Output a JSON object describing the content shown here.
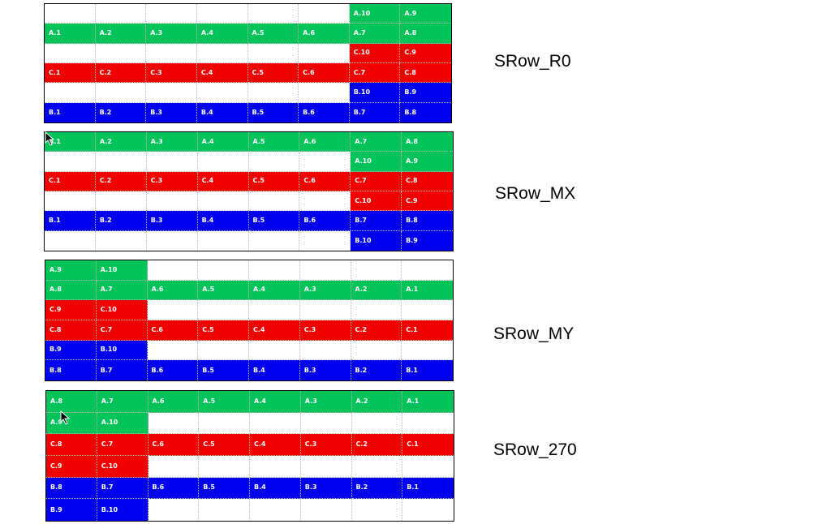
{
  "colors": {
    "A": "#00c35a",
    "C": "#f00000",
    "B": "#0000ee"
  },
  "panels": [
    {
      "label": "SRow_R0",
      "rows": [
        [
          "",
          "",
          "",
          "",
          "",
          "",
          "A.10",
          "A.9"
        ],
        [
          "A.1",
          "A.2",
          "A.3",
          "A.4",
          "A.5",
          "A.6",
          "A.7",
          "A.8"
        ],
        [
          "",
          "",
          "",
          "",
          "",
          "",
          "C.10",
          "C.9"
        ],
        [
          "C.1",
          "C.2",
          "C.3",
          "C.4",
          "C.5",
          "C.6",
          "C.7",
          "C.8"
        ],
        [
          "",
          "",
          "",
          "",
          "",
          "",
          "B.10",
          "B.9"
        ],
        [
          "B.1",
          "B.2",
          "B.3",
          "B.4",
          "B.5",
          "B.6",
          "B.7",
          "B.8"
        ]
      ]
    },
    {
      "label": "SRow_MX",
      "rows": [
        [
          "A.1",
          "A.2",
          "A.3",
          "A.4",
          "A.5",
          "A.6",
          "A.7",
          "A.8"
        ],
        [
          "",
          "",
          "",
          "",
          "",
          "",
          "A.10",
          "A.9"
        ],
        [
          "C.1",
          "C.2",
          "C.3",
          "C.4",
          "C.5",
          "C.6",
          "C.7",
          "C.8"
        ],
        [
          "",
          "",
          "",
          "",
          "",
          "",
          "C.10",
          "C.9"
        ],
        [
          "B.1",
          "B.2",
          "B.3",
          "B.4",
          "B.5",
          "B.6",
          "B.7",
          "B.8"
        ],
        [
          "",
          "",
          "",
          "",
          "",
          "",
          "B.10",
          "B.9"
        ]
      ]
    },
    {
      "label": "SRow_MY",
      "rows": [
        [
          "A.9",
          "A.10",
          "",
          "",
          "",
          "",
          "",
          ""
        ],
        [
          "A.8",
          "A.7",
          "A.6",
          "A.5",
          "A.4",
          "A.3",
          "A.2",
          "A.1"
        ],
        [
          "C.9",
          "C.10",
          "",
          "",
          "",
          "",
          "",
          ""
        ],
        [
          "C.8",
          "C.7",
          "C.6",
          "C.5",
          "C.4",
          "C.3",
          "C.2",
          "C.1"
        ],
        [
          "B.9",
          "B.10",
          "",
          "",
          "",
          "",
          "",
          ""
        ],
        [
          "B.8",
          "B.7",
          "B.6",
          "B.5",
          "B.4",
          "B.3",
          "B.2",
          "B.1"
        ]
      ]
    },
    {
      "label": "SRow_270",
      "rows": [
        [
          "A.8",
          "A.7",
          "A.6",
          "A.5",
          "A.4",
          "A.3",
          "A.2",
          "A.1"
        ],
        [
          "A.9",
          "A.10",
          "",
          "",
          "",
          "",
          "",
          ""
        ],
        [
          "C.8",
          "C.7",
          "C.6",
          "C.5",
          "C.4",
          "C.3",
          "C.2",
          "C.1"
        ],
        [
          "C.9",
          "C.10",
          "",
          "",
          "",
          "",
          "",
          ""
        ],
        [
          "B.8",
          "B.7",
          "B.6",
          "B.5",
          "B.4",
          "B.3",
          "B.2",
          "B.1"
        ],
        [
          "B.9",
          "B.10",
          "",
          "",
          "",
          "",
          "",
          ""
        ]
      ]
    }
  ]
}
